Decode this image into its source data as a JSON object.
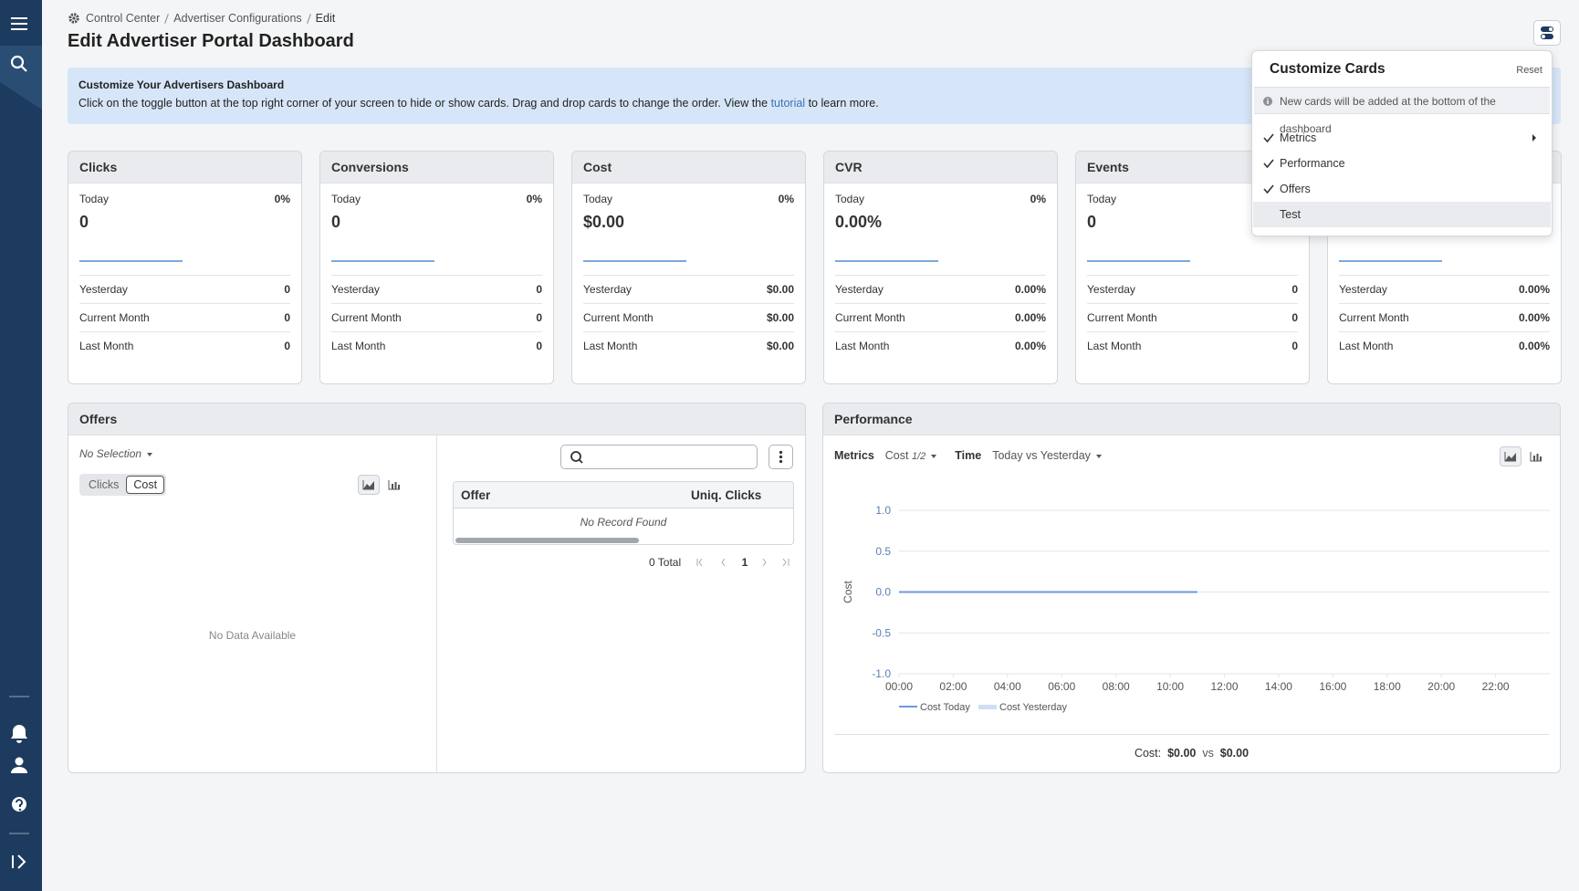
{
  "breadcrumb": [
    "Control Center",
    "Advertiser Configurations",
    "Edit"
  ],
  "title": "Edit Advertiser Portal Dashboard",
  "banner": {
    "title": "Customize Your Advertisers Dashboard",
    "text": "Click on the toggle button at the top right corner of your screen to hide or show cards. Drag and drop cards to change the order. View the",
    "link": "tutorial",
    "text_end": "to learn more."
  },
  "cards": [
    {
      "title": "Clicks",
      "today_label": "Today",
      "change": "0%",
      "value": "0",
      "rows": [
        {
          "label": "Yesterday",
          "value": "0"
        },
        {
          "label": "Current Month",
          "value": "0"
        },
        {
          "label": "Last Month",
          "value": "0"
        }
      ]
    },
    {
      "title": "Conversions",
      "today_label": "Today",
      "change": "0%",
      "value": "0",
      "rows": [
        {
          "label": "Yesterday",
          "value": "0"
        },
        {
          "label": "Current Month",
          "value": "0"
        },
        {
          "label": "Last Month",
          "value": "0"
        }
      ]
    },
    {
      "title": "Cost",
      "today_label": "Today",
      "change": "0%",
      "value": "$0.00",
      "rows": [
        {
          "label": "Yesterday",
          "value": "$0.00"
        },
        {
          "label": "Current Month",
          "value": "$0.00"
        },
        {
          "label": "Last Month",
          "value": "$0.00"
        }
      ]
    },
    {
      "title": "CVR",
      "today_label": "Today",
      "change": "0%",
      "value": "0.00%",
      "rows": [
        {
          "label": "Yesterday",
          "value": "0.00%"
        },
        {
          "label": "Current Month",
          "value": "0.00%"
        },
        {
          "label": "Last Month",
          "value": "0.00%"
        }
      ]
    },
    {
      "title": "Events",
      "today_label": "Today",
      "value": "0",
      "rows": [
        {
          "label": "Yesterday",
          "value": "0"
        },
        {
          "label": "Current Month",
          "value": "0"
        },
        {
          "label": "Last Month",
          "value": "0"
        }
      ]
    },
    {
      "rows": [
        {
          "label": "Yesterday",
          "value": "0.00%"
        },
        {
          "label": "Current Month",
          "value": "0.00%"
        },
        {
          "label": "Last Month",
          "value": "0.00%"
        }
      ]
    }
  ],
  "offers": {
    "title": "Offers",
    "selection": "No Selection",
    "tabs": [
      "Clicks",
      "Cost"
    ],
    "active_tab": 1,
    "empty": "No Data Available",
    "columns": [
      "Offer",
      "Uniq. Clicks"
    ],
    "no_record": "No Record Found",
    "total": "0 Total",
    "page": "1"
  },
  "performance": {
    "title": "Performance",
    "metrics_label": "Metrics",
    "metric": "Cost",
    "metric_count": "1/2",
    "time_label": "Time",
    "time": "Today vs Yesterday",
    "summary": {
      "label": "Cost:",
      "today": "$0.00",
      "vs": "vs",
      "yesterday": "$0.00"
    }
  },
  "chart_data": {
    "type": "line",
    "y_label": "Cost",
    "xlim": [
      0,
      24
    ],
    "xticks": [
      {
        "value": 0,
        "label": "00:00"
      },
      {
        "value": 2,
        "label": "02:00"
      },
      {
        "value": 4,
        "label": "04:00"
      },
      {
        "value": 6,
        "label": "06:00"
      },
      {
        "value": 8,
        "label": "08:00"
      },
      {
        "value": 10,
        "label": "10:00"
      },
      {
        "value": 12,
        "label": "12:00"
      },
      {
        "value": 14,
        "label": "14:00"
      },
      {
        "value": 16,
        "label": "16:00"
      },
      {
        "value": 18,
        "label": "18:00"
      },
      {
        "value": 20,
        "label": "20:00"
      },
      {
        "value": 22,
        "label": "22:00"
      }
    ],
    "ylim": [
      -1,
      1
    ],
    "yticks": [
      {
        "value": 1,
        "label": "1.0"
      },
      0.5,
      {
        "value": 0,
        "label": "0.0"
      },
      -0.5,
      {
        "value": -1,
        "label": "-1.0"
      }
    ],
    "grid": true,
    "series": [
      {
        "name": "Cost Today",
        "color": "#6b9ad8",
        "x": [
          0,
          1,
          2,
          3,
          4,
          5,
          6,
          7,
          8,
          9,
          10,
          11
        ],
        "values": [
          0,
          0,
          0,
          0,
          0,
          0,
          0,
          0,
          0,
          0,
          0,
          0
        ]
      },
      {
        "name": "Cost Yesterday",
        "color": "#cfdff4",
        "x": [],
        "values": []
      }
    ]
  },
  "popup": {
    "title": "Customize Cards",
    "reset": "Reset",
    "note": "New cards will be added at the bottom of the dashboard",
    "items": [
      {
        "label": "Metrics",
        "checked": true,
        "submenu": true
      },
      {
        "label": "Performance",
        "checked": true
      },
      {
        "label": "Offers",
        "checked": true
      },
      {
        "label": "Test",
        "checked": false,
        "hover": true
      }
    ]
  }
}
